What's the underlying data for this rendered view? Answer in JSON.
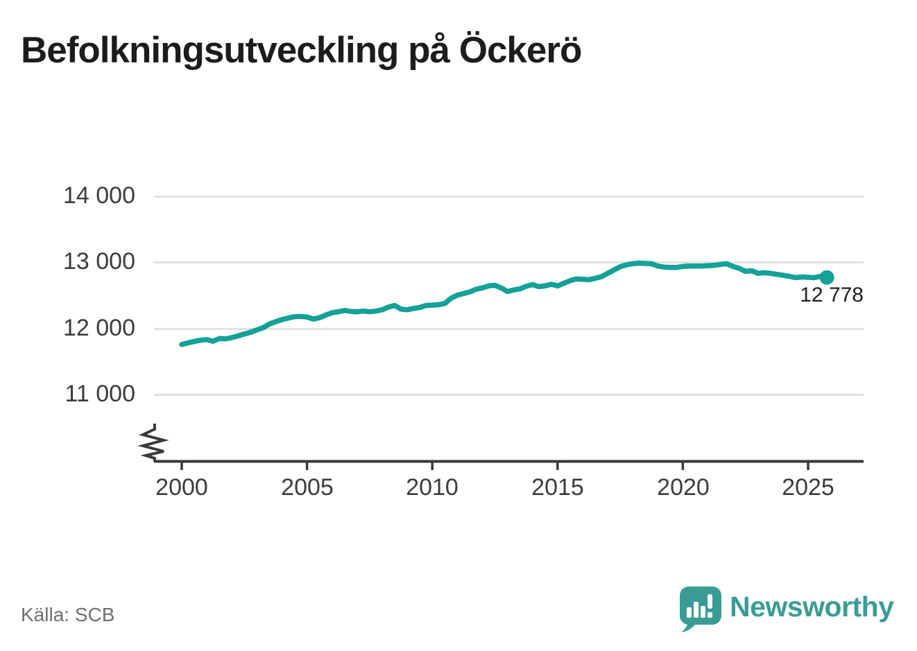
{
  "header": {
    "title": "Befolkningsutveckling på Öckerö"
  },
  "footer": {
    "source": "Källa: SCB",
    "brand": "Newsworthy"
  },
  "colors": {
    "line": "#14a197",
    "brand_teal": "#3b9c94",
    "grid": "#e2e2e2",
    "axis": "#3a3a3a",
    "title_text": "#1c1c1c",
    "muted_text": "#6f6f6f"
  },
  "chart_data": {
    "type": "line",
    "title": "Befolkningsutveckling på Öckerö",
    "xlabel": "",
    "ylabel": "",
    "x_ticks": [
      "2000",
      "2005",
      "2010",
      "2015",
      "2020",
      "2025"
    ],
    "x_tick_values": [
      2000,
      2005,
      2010,
      2015,
      2020,
      2025
    ],
    "y_ticks": [
      "14 000",
      "13 000",
      "12 000",
      "11 000"
    ],
    "y_tick_values": [
      14000,
      13000,
      12000,
      11000
    ],
    "ylim": [
      11000,
      14000
    ],
    "xlim": [
      2000,
      2026
    ],
    "axis_break": true,
    "grid": "horizontal",
    "legend": "none",
    "source": "Källa: SCB",
    "last_point": {
      "x": 2025.75,
      "y": 12778,
      "label": "12 778"
    },
    "series": [
      {
        "name": "Befolkning",
        "points": [
          [
            2000,
            11765
          ],
          [
            2000.25,
            11790
          ],
          [
            2000.5,
            11810
          ],
          [
            2000.75,
            11830
          ],
          [
            2001,
            11840
          ],
          [
            2001.25,
            11815
          ],
          [
            2001.5,
            11855
          ],
          [
            2001.75,
            11850
          ],
          [
            2002,
            11870
          ],
          [
            2002.25,
            11895
          ],
          [
            2002.5,
            11925
          ],
          [
            2002.75,
            11950
          ],
          [
            2003,
            11985
          ],
          [
            2003.25,
            12020
          ],
          [
            2003.5,
            12075
          ],
          [
            2003.75,
            12110
          ],
          [
            2004,
            12140
          ],
          [
            2004.25,
            12165
          ],
          [
            2004.5,
            12185
          ],
          [
            2004.75,
            12190
          ],
          [
            2005,
            12180
          ],
          [
            2005.25,
            12150
          ],
          [
            2005.5,
            12170
          ],
          [
            2005.75,
            12210
          ],
          [
            2006,
            12245
          ],
          [
            2006.25,
            12260
          ],
          [
            2006.5,
            12280
          ],
          [
            2006.75,
            12265
          ],
          [
            2007,
            12260
          ],
          [
            2007.25,
            12270
          ],
          [
            2007.5,
            12260
          ],
          [
            2007.75,
            12270
          ],
          [
            2008,
            12290
          ],
          [
            2008.25,
            12330
          ],
          [
            2008.5,
            12355
          ],
          [
            2008.75,
            12300
          ],
          [
            2009,
            12290
          ],
          [
            2009.25,
            12310
          ],
          [
            2009.5,
            12325
          ],
          [
            2009.75,
            12355
          ],
          [
            2010,
            12360
          ],
          [
            2010.25,
            12365
          ],
          [
            2010.5,
            12385
          ],
          [
            2010.75,
            12465
          ],
          [
            2011,
            12510
          ],
          [
            2011.25,
            12535
          ],
          [
            2011.5,
            12560
          ],
          [
            2011.75,
            12600
          ],
          [
            2012,
            12620
          ],
          [
            2012.25,
            12650
          ],
          [
            2012.5,
            12660
          ],
          [
            2012.75,
            12620
          ],
          [
            2013,
            12565
          ],
          [
            2013.25,
            12590
          ],
          [
            2013.5,
            12605
          ],
          [
            2013.75,
            12645
          ],
          [
            2014,
            12670
          ],
          [
            2014.25,
            12640
          ],
          [
            2014.5,
            12650
          ],
          [
            2014.75,
            12675
          ],
          [
            2015,
            12650
          ],
          [
            2015.25,
            12690
          ],
          [
            2015.5,
            12730
          ],
          [
            2015.75,
            12755
          ],
          [
            2016,
            12750
          ],
          [
            2016.25,
            12745
          ],
          [
            2016.5,
            12765
          ],
          [
            2016.75,
            12790
          ],
          [
            2017,
            12840
          ],
          [
            2017.25,
            12890
          ],
          [
            2017.5,
            12940
          ],
          [
            2017.75,
            12970
          ],
          [
            2018,
            12985
          ],
          [
            2018.25,
            12995
          ],
          [
            2018.5,
            12990
          ],
          [
            2018.75,
            12985
          ],
          [
            2019,
            12950
          ],
          [
            2019.25,
            12935
          ],
          [
            2019.5,
            12930
          ],
          [
            2019.75,
            12930
          ],
          [
            2020,
            12945
          ],
          [
            2020.25,
            12950
          ],
          [
            2020.5,
            12950
          ],
          [
            2020.75,
            12950
          ],
          [
            2021,
            12955
          ],
          [
            2021.25,
            12960
          ],
          [
            2021.5,
            12975
          ],
          [
            2021.75,
            12985
          ],
          [
            2022,
            12945
          ],
          [
            2022.25,
            12915
          ],
          [
            2022.5,
            12870
          ],
          [
            2022.75,
            12880
          ],
          [
            2023,
            12840
          ],
          [
            2023.25,
            12850
          ],
          [
            2023.5,
            12840
          ],
          [
            2023.75,
            12825
          ],
          [
            2024,
            12810
          ],
          [
            2024.25,
            12795
          ],
          [
            2024.5,
            12775
          ],
          [
            2024.75,
            12785
          ],
          [
            2025,
            12780
          ],
          [
            2025.25,
            12775
          ],
          [
            2025.5,
            12795
          ],
          [
            2025.75,
            12778
          ]
        ]
      }
    ]
  }
}
